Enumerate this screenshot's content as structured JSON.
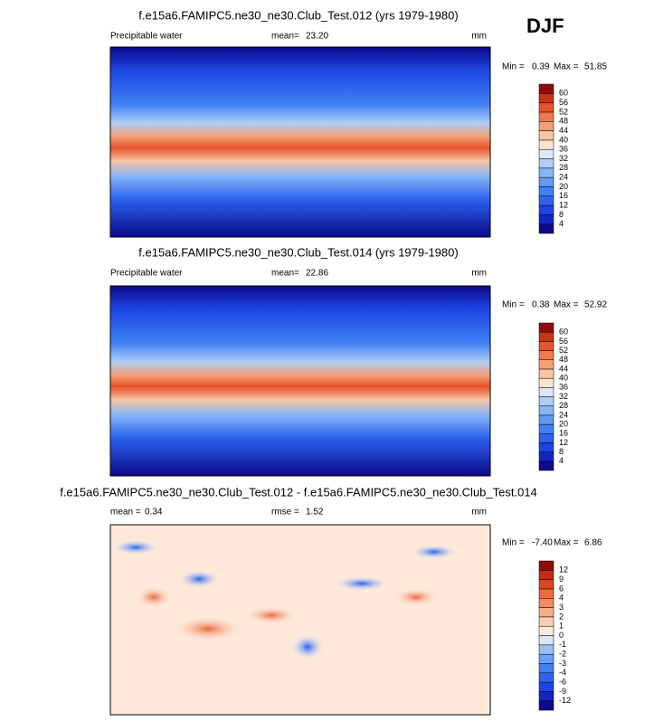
{
  "season": "DJF",
  "panels": [
    {
      "title": "f.e15a6.FAMIPC5.ne30_ne30.Club_Test.012 (yrs 1979-1980)",
      "left_label": "Precipitable water",
      "stats": [
        {
          "label": "mean=",
          "value": "23.20"
        }
      ],
      "units": "mm",
      "min_label": "Min =",
      "min": "0.39",
      "max_label": "Max =",
      "max": "51.85",
      "levels": [
        4,
        8,
        12,
        16,
        20,
        24,
        28,
        32,
        36,
        40,
        44,
        48,
        52,
        56,
        60
      ],
      "colors": [
        "#0b0a8a",
        "#1226c4",
        "#1d44e2",
        "#2c62ef",
        "#3f80f4",
        "#5e9bf5",
        "#86b5f6",
        "#b0cdf7",
        "#dbe7fa",
        "#fbe3cf",
        "#f8c6a4",
        "#f5a077",
        "#f07a4f",
        "#e6522a",
        "#c73414",
        "#8e0c0c"
      ]
    },
    {
      "title": "f.e15a6.FAMIPC5.ne30_ne30.Club_Test.014 (yrs 1979-1980)",
      "left_label": "Precipitable water",
      "stats": [
        {
          "label": "mean=",
          "value": "22.86"
        }
      ],
      "units": "mm",
      "min_label": "Min =",
      "min": "0.38",
      "max_label": "Max =",
      "max": "52.92",
      "levels": [
        4,
        8,
        12,
        16,
        20,
        24,
        28,
        32,
        36,
        40,
        44,
        48,
        52,
        56,
        60
      ],
      "colors": [
        "#0b0a8a",
        "#1226c4",
        "#1d44e2",
        "#2c62ef",
        "#3f80f4",
        "#5e9bf5",
        "#86b5f6",
        "#b0cdf7",
        "#dbe7fa",
        "#fbe3cf",
        "#f8c6a4",
        "#f5a077",
        "#f07a4f",
        "#e6522a",
        "#c73414",
        "#8e0c0c"
      ]
    },
    {
      "title": "f.e15a6.FAMIPC5.ne30_ne30.Club_Test.012 - f.e15a6.FAMIPC5.ne30_ne30.Club_Test.014",
      "stats": [
        {
          "label": "mean =",
          "value": "0.34"
        },
        {
          "label": "rmse =",
          "value": "1.52"
        }
      ],
      "units": "mm",
      "min_label": "Min =",
      "min": "-7.40",
      "max_label": "Max =",
      "max": "6.86",
      "levels": [
        -12,
        -9,
        -6,
        -4,
        -3,
        -2,
        -1,
        0,
        1,
        2,
        3,
        4,
        6,
        9,
        12
      ],
      "colors": [
        "#0b0a8a",
        "#1226c4",
        "#1d44e2",
        "#2c62ef",
        "#3f80f4",
        "#6a9ff5",
        "#9cc0f6",
        "#d6e5fa",
        "#fde8da",
        "#f9cdb0",
        "#f6ad88",
        "#f28a62",
        "#ec6a3e",
        "#dd4620",
        "#c02e10",
        "#8e0c0c"
      ]
    }
  ]
}
